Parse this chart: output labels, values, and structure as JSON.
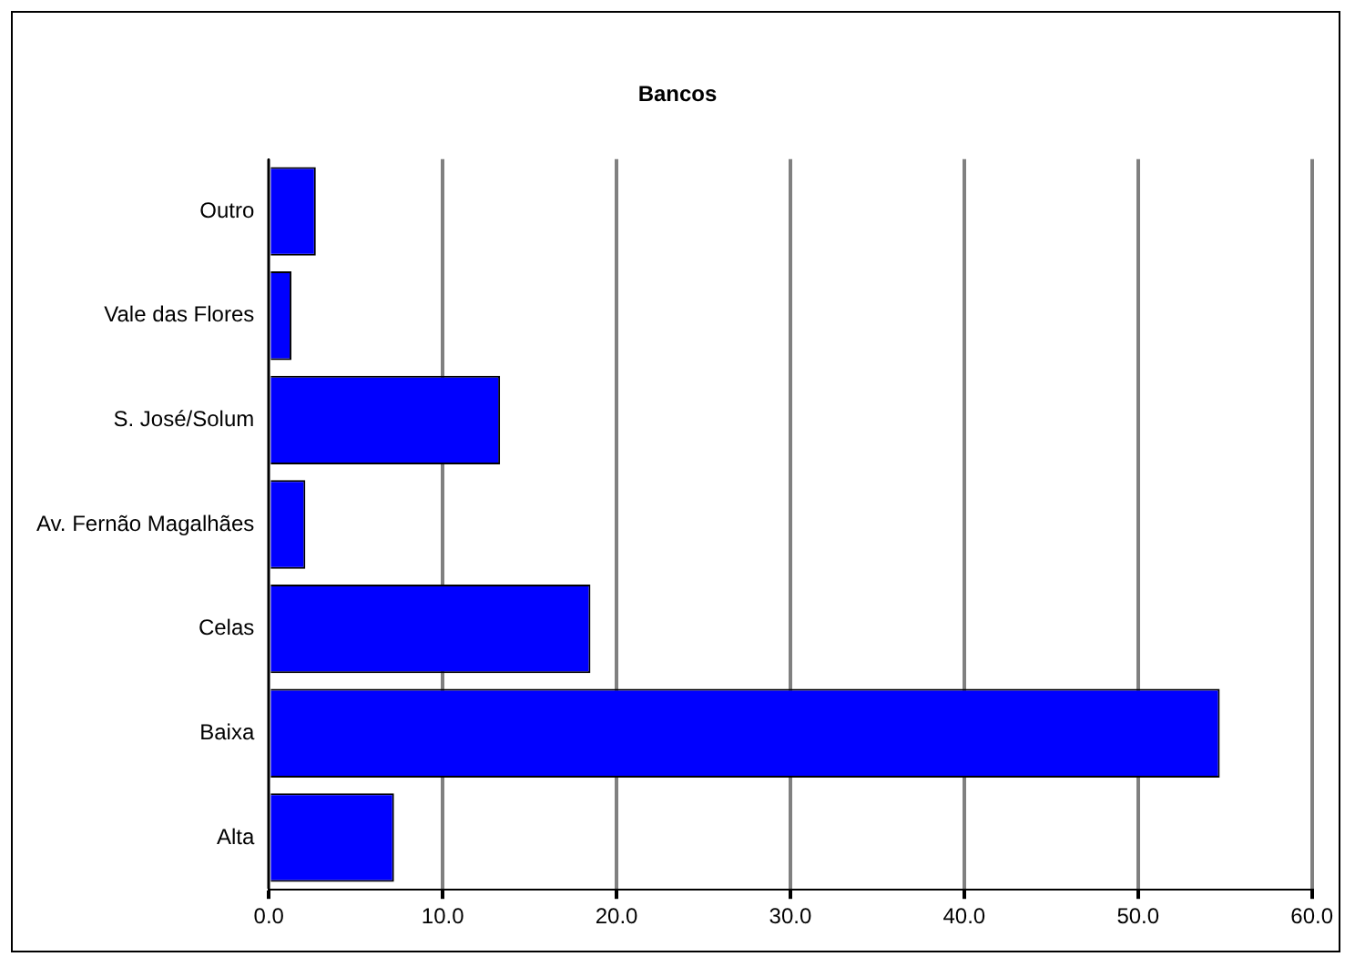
{
  "chart_data": {
    "type": "bar",
    "orientation": "horizontal",
    "title": "Bancos",
    "categories": [
      "Outro",
      "Vale das Flores",
      "S. José/Solum",
      "Av. Fernão Magalhães",
      "Celas",
      "Baixa",
      "Alta"
    ],
    "values": [
      2.7,
      1.3,
      13.3,
      2.1,
      18.5,
      54.7,
      7.2
    ],
    "color": "#0000ff",
    "xlim": [
      0,
      60
    ],
    "xticks": [
      {
        "value": 0,
        "label": "0.0"
      },
      {
        "value": 10,
        "label": "10.0"
      },
      {
        "value": 20,
        "label": "20.0"
      },
      {
        "value": 30,
        "label": "30.0"
      },
      {
        "value": 40,
        "label": "40.0"
      },
      {
        "value": 50,
        "label": "50.0"
      },
      {
        "value": 60,
        "label": "60.0"
      }
    ],
    "grid": "x",
    "legend": false
  }
}
